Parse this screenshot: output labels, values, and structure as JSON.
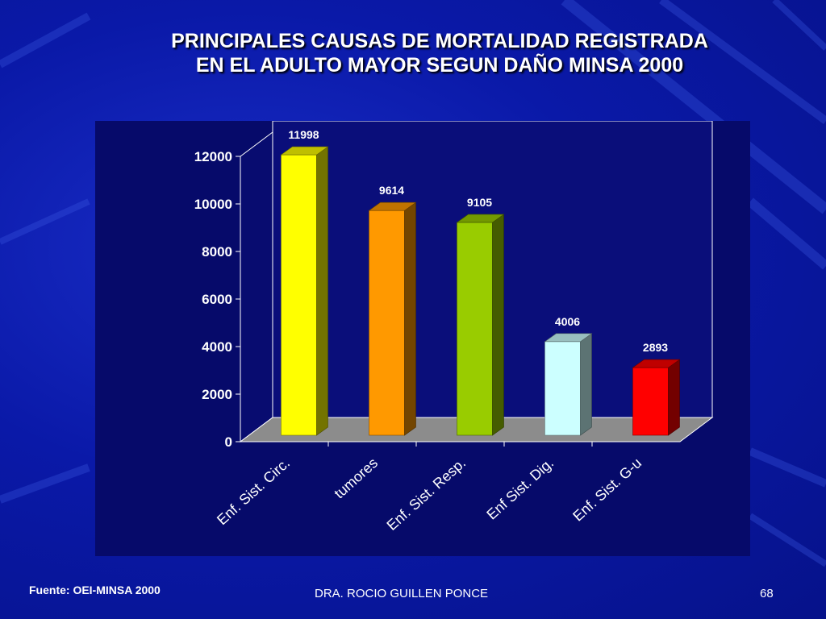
{
  "slide": {
    "title_line1": "PRINCIPALES CAUSAS DE MORTALIDAD REGISTRADA",
    "title_line2": "EN EL ADULTO MAYOR SEGUN DAÑO  MINSA 2000",
    "source": "Fuente: OEI-MINSA 2000",
    "author": "DRA. ROCIO GUILLEN PONCE",
    "page_number": "68"
  },
  "chart_data": {
    "type": "bar",
    "title": "",
    "xlabel": "",
    "ylabel": "",
    "categories": [
      "Enf. Sist. Circ.",
      "tumores",
      "Enf. Sist. Resp.",
      "Enf Sist. Dig.",
      "Enf. Sist. G-u"
    ],
    "values": [
      11998,
      9614,
      9105,
      4006,
      2893
    ],
    "data_labels": [
      "11998",
      "9614",
      "9105",
      "4006",
      "2893"
    ],
    "ylim": [
      0,
      12000
    ],
    "yticks": [
      0,
      2000,
      4000,
      6000,
      8000,
      10000,
      12000
    ],
    "bar_colors": [
      "#ffff00",
      "#ff9900",
      "#99cc00",
      "#ccffff",
      "#ff0000"
    ],
    "grid": false,
    "legend": "none",
    "three_d": true
  }
}
